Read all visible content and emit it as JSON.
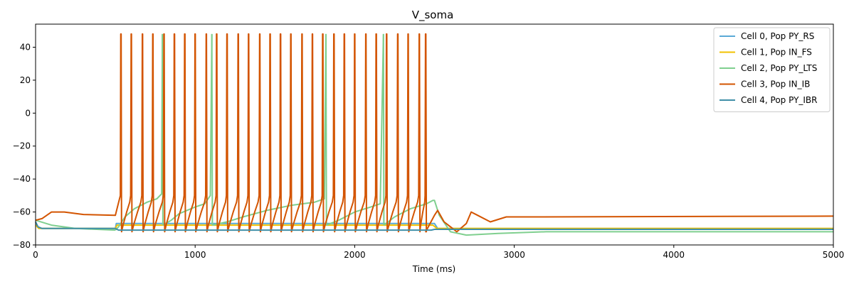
{
  "chart_data": {
    "type": "line",
    "title": "V_soma",
    "xlabel": "Time (ms)",
    "ylabel": "",
    "xlim": [
      0,
      5000
    ],
    "ylim": [
      -80,
      54
    ],
    "xticks": [
      0,
      1000,
      2000,
      3000,
      4000,
      5000
    ],
    "yticks": [
      -80,
      -60,
      -40,
      -20,
      0,
      20,
      40
    ],
    "grid": false,
    "legend_position": "top-right",
    "stimulus_window_ms": [
      500,
      2500
    ],
    "series": [
      {
        "name": "Cell 0, Pop PY_RS",
        "color": "#5aa9d6",
        "points": [
          [
            0,
            -66
          ],
          [
            15,
            -69
          ],
          [
            40,
            -70
          ],
          [
            500,
            -70
          ],
          [
            506,
            -67
          ],
          [
            2480,
            -67
          ],
          [
            2500,
            -67
          ],
          [
            2520,
            -70
          ],
          [
            5000,
            -70
          ]
        ]
      },
      {
        "name": "Cell 1, Pop IN_FS",
        "color": "#f2c200",
        "points": [
          [
            0,
            -68
          ],
          [
            20,
            -70
          ],
          [
            500,
            -70
          ],
          [
            510,
            -68
          ],
          [
            2490,
            -68
          ],
          [
            2515,
            -70
          ],
          [
            5000,
            -70
          ]
        ]
      },
      {
        "name": "Cell 2, Pop PY_LTS",
        "color": "#7fcf8f",
        "spike_peak": 48,
        "spike_min": -68,
        "segments": [
          [
            [
              0,
              -65
            ],
            [
              100,
              -68
            ],
            [
              250,
              -70
            ],
            [
              500,
              -71
            ]
          ],
          [
            [
              500,
              -71
            ],
            [
              520,
              -69
            ],
            [
              560,
              -63
            ],
            [
              620,
              -58
            ],
            [
              700,
              -54
            ],
            [
              760,
              -52
            ],
            [
              790,
              -49
            ],
            [
              795,
              48
            ]
          ],
          [
            [
              798,
              -68
            ],
            [
              850,
              -65
            ],
            [
              900,
              -61
            ],
            [
              1000,
              -57
            ],
            [
              1060,
              -55
            ],
            [
              1095,
              -50
            ],
            [
              1105,
              48
            ]
          ],
          [
            [
              1108,
              -68
            ],
            [
              1200,
              -66
            ],
            [
              1300,
              -63
            ],
            [
              1450,
              -59
            ],
            [
              1600,
              -56
            ],
            [
              1750,
              -54
            ],
            [
              1810,
              -52
            ],
            [
              1820,
              48
            ]
          ],
          [
            [
              1823,
              -68
            ],
            [
              1900,
              -65
            ],
            [
              2000,
              -60
            ],
            [
              2100,
              -57
            ],
            [
              2160,
              -55
            ],
            [
              2180,
              48
            ]
          ],
          [
            [
              2183,
              -68
            ],
            [
              2250,
              -63
            ],
            [
              2350,
              -58
            ],
            [
              2450,
              -55
            ],
            [
              2490,
              -53
            ],
            [
              2500,
              -53
            ],
            [
              2530,
              -62
            ],
            [
              2600,
              -72
            ],
            [
              2700,
              -74
            ],
            [
              2900,
              -73
            ],
            [
              3200,
              -72
            ],
            [
              5000,
              -72
            ]
          ]
        ]
      },
      {
        "name": "Cell 3, Pop IN_IB",
        "color": "#d35400",
        "spike_peak": 48,
        "spike_min": -72,
        "pre": [
          [
            0,
            -65
          ],
          [
            40,
            -64
          ],
          [
            100,
            -60
          ],
          [
            180,
            -60
          ],
          [
            300,
            -61.5
          ],
          [
            500,
            -62
          ]
        ],
        "spike_times": [
          535,
          600,
          670,
          735,
          805,
          870,
          935,
          1000,
          1070,
          1135,
          1200,
          1270,
          1335,
          1405,
          1470,
          1535,
          1600,
          1670,
          1735,
          1800,
          1870,
          1935,
          2000,
          2070,
          2135,
          2200,
          2270,
          2335,
          2405,
          2445
        ],
        "post": [
          [
            2445,
            -72
          ],
          [
            2500,
            -62
          ],
          [
            2520,
            -59
          ],
          [
            2560,
            -66
          ],
          [
            2640,
            -72
          ],
          [
            2700,
            -67
          ],
          [
            2730,
            -60
          ],
          [
            2770,
            -62
          ],
          [
            2850,
            -66
          ],
          [
            2950,
            -63
          ],
          [
            3100,
            -63
          ],
          [
            5000,
            -62.5
          ]
        ]
      },
      {
        "name": "Cell 4, Pop PY_IBR",
        "color": "#3f8fa8",
        "points": [
          [
            0,
            -66
          ],
          [
            15,
            -69
          ],
          [
            40,
            -70
          ],
          [
            500,
            -70
          ],
          [
            520,
            -71
          ],
          [
            2480,
            -71
          ],
          [
            2500,
            -70.5
          ],
          [
            5000,
            -70.5
          ]
        ]
      }
    ]
  }
}
